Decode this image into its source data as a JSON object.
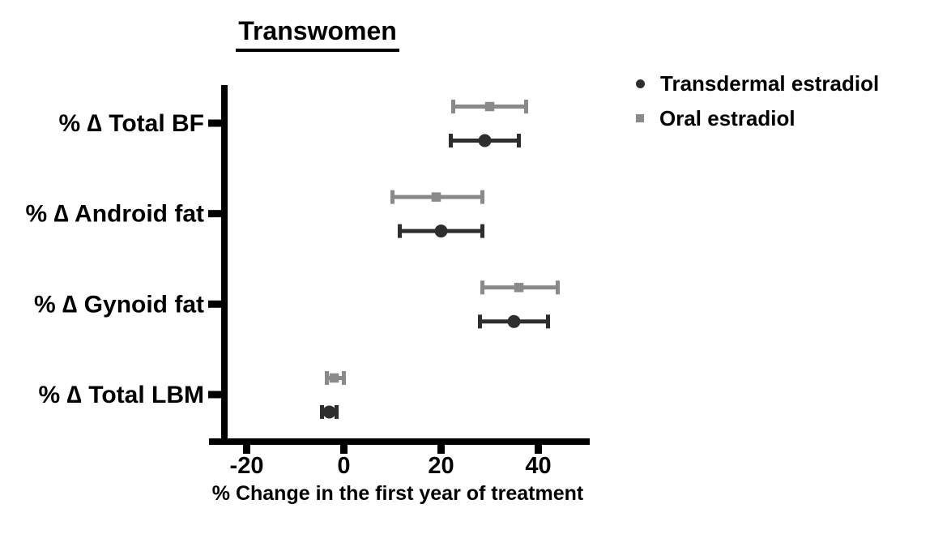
{
  "figure": {
    "title": "Transwomen",
    "x_axis_label": "% Change in the first year of treatment"
  },
  "legend": {
    "position": "top-right",
    "items": [
      {
        "label": "Transdermal estradiol",
        "marker": "circle-marker-icon",
        "shape": "circle",
        "color": "#2e2e2e"
      },
      {
        "label": "Oral estradiol",
        "marker": "square-marker-icon",
        "shape": "square",
        "color": "#8a8a8a"
      }
    ]
  },
  "chart_data": {
    "type": "scatter",
    "subtype": "horizontal-forest-plot-with-error-bars",
    "title": "Transwomen",
    "xlabel": "% Change in the first year of treatment",
    "ylabel": "",
    "categories": [
      "% ∆ Total BF",
      "% ∆ Android fat",
      "% ∆ Gynoid fat",
      "% ∆ Total LBM"
    ],
    "x_ticks": [
      -20,
      0,
      20,
      40
    ],
    "xlim": [
      -27.5,
      50.5
    ],
    "grid": false,
    "legend_position": "top-right",
    "series": [
      {
        "name": "Transdermal estradiol",
        "marker": "circle",
        "color": "#2e2e2e",
        "points": [
          {
            "category": "% ∆ Total BF",
            "mean": 29,
            "ci_low": 22,
            "ci_high": 36
          },
          {
            "category": "% ∆ Android fat",
            "mean": 20,
            "ci_low": 11.5,
            "ci_high": 28.5
          },
          {
            "category": "% ∆ Gynoid fat",
            "mean": 35,
            "ci_low": 28,
            "ci_high": 42
          },
          {
            "category": "% ∆ Total LBM",
            "mean": -3,
            "ci_low": -4.5,
            "ci_high": -1.5
          }
        ]
      },
      {
        "name": "Oral estradiol",
        "marker": "square",
        "color": "#8a8a8a",
        "points": [
          {
            "category": "% ∆ Total BF",
            "mean": 30,
            "ci_low": 22.5,
            "ci_high": 37.5
          },
          {
            "category": "% ∆ Android fat",
            "mean": 19,
            "ci_low": 10,
            "ci_high": 28.5
          },
          {
            "category": "% ∆ Gynoid fat",
            "mean": 36,
            "ci_low": 28.5,
            "ci_high": 44
          },
          {
            "category": "% ∆ Total LBM",
            "mean": -2,
            "ci_low": -3.5,
            "ci_high": 0
          }
        ]
      }
    ]
  }
}
